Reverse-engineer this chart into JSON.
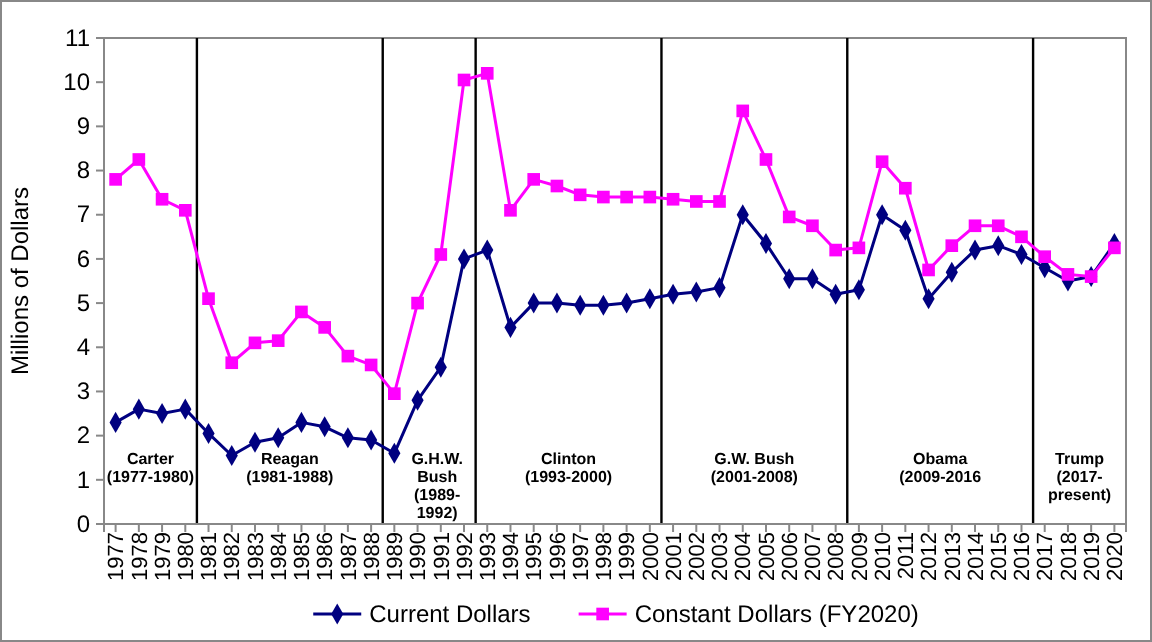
{
  "chart_data": {
    "type": "line",
    "ylabel": "Millions of Dollars",
    "x": [
      1977,
      1978,
      1979,
      1980,
      1981,
      1982,
      1983,
      1984,
      1985,
      1986,
      1987,
      1988,
      1989,
      1990,
      1991,
      1992,
      1993,
      1994,
      1995,
      1996,
      1997,
      1998,
      1999,
      2000,
      2001,
      2002,
      2003,
      2004,
      2005,
      2006,
      2007,
      2008,
      2009,
      2010,
      2011,
      2012,
      2013,
      2014,
      2015,
      2016,
      2017,
      2018,
      2019,
      2020
    ],
    "xlim": [
      1976.5,
      2020.5
    ],
    "xticks": [
      1977,
      1978,
      1979,
      1980,
      1981,
      1982,
      1983,
      1984,
      1985,
      1986,
      1987,
      1988,
      1989,
      1990,
      1991,
      1992,
      1993,
      1994,
      1995,
      1996,
      1997,
      1998,
      1999,
      2000,
      2001,
      2002,
      2003,
      2004,
      2005,
      2006,
      2007,
      2008,
      2009,
      2010,
      2011,
      2012,
      2013,
      2014,
      2015,
      2016,
      2017,
      2018,
      2019,
      2020
    ],
    "ylim": [
      0,
      11
    ],
    "yticks": [
      0,
      1,
      2,
      3,
      4,
      5,
      6,
      7,
      8,
      9,
      10,
      11
    ],
    "series": [
      {
        "name": "Current Dollars",
        "color": "#000080",
        "marker": "diamond",
        "values": [
          2.3,
          2.6,
          2.5,
          2.6,
          2.05,
          1.55,
          1.85,
          1.95,
          2.3,
          2.2,
          1.95,
          1.9,
          1.6,
          2.8,
          3.55,
          6.0,
          6.2,
          4.45,
          5.0,
          5.0,
          4.95,
          4.95,
          5.0,
          5.1,
          5.2,
          5.25,
          5.35,
          7.0,
          6.35,
          5.55,
          5.55,
          5.2,
          5.3,
          7.0,
          6.65,
          5.1,
          5.7,
          6.2,
          6.3,
          6.1,
          5.8,
          5.5,
          5.6,
          6.35
        ]
      },
      {
        "name": "Constant Dollars (FY2020)",
        "color": "#ff00ff",
        "marker": "square",
        "values": [
          7.8,
          8.25,
          7.35,
          7.1,
          5.1,
          3.65,
          4.1,
          4.15,
          4.8,
          4.45,
          3.8,
          3.6,
          2.95,
          5.0,
          6.1,
          10.05,
          10.2,
          7.1,
          7.8,
          7.65,
          7.45,
          7.4,
          7.4,
          7.4,
          7.35,
          7.3,
          7.3,
          9.35,
          8.25,
          6.95,
          6.75,
          6.2,
          6.25,
          8.2,
          7.6,
          5.75,
          6.3,
          6.75,
          6.75,
          6.5,
          6.05,
          5.65,
          5.6,
          6.25
        ]
      }
    ],
    "ref_lines": [
      {
        "axis": "x",
        "value": 1980.5
      },
      {
        "axis": "x",
        "value": 1988.5
      },
      {
        "axis": "x",
        "value": 1992.5
      },
      {
        "axis": "x",
        "value": 2000.5
      },
      {
        "axis": "x",
        "value": 2008.5
      },
      {
        "axis": "x",
        "value": 2016.5
      }
    ],
    "annotations": [
      "Carter\n(1977-1980)",
      "Reagan\n(1981-1988)",
      "G.H.W.\nBush\n(1989-\n1992)",
      "Clinton\n(1993-2000)",
      "G.W. Bush\n(2001-2008)",
      "Obama\n(2009-2016",
      "Trump\n(2017-\npresent)"
    ],
    "legend": "bottom",
    "grid": false
  }
}
